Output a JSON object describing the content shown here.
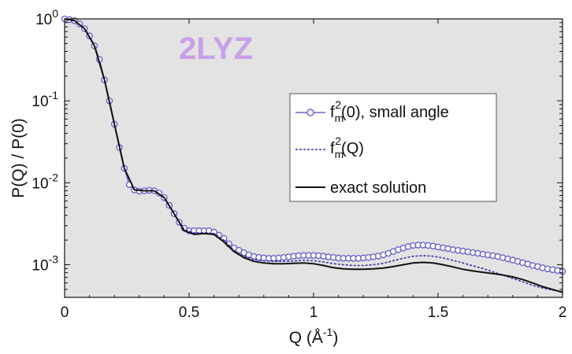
{
  "chart_data": {
    "type": "line",
    "annotation": "2LYZ",
    "xlabel_main": "Q (Å",
    "xlabel_sup": "-1",
    "xlabel_close": ")",
    "ylabel": "P(Q) / P(0)",
    "xlim": [
      0,
      2
    ],
    "ylim": [
      0.0004,
      1
    ],
    "yscale": "log",
    "grid": false,
    "legend_position": "right",
    "x_ticks": [
      "0",
      "0.5",
      "1",
      "1.5",
      "2"
    ],
    "y_ticks": [
      {
        "base": "10",
        "exp": "0"
      },
      {
        "base": "10",
        "exp": "-1"
      },
      {
        "base": "10",
        "exp": "-2"
      },
      {
        "base": "10",
        "exp": "-3"
      }
    ],
    "series": [
      {
        "name": "f_m^2(0), small angle",
        "legend_main": "f",
        "legend_sub": "m",
        "legend_sup": "2",
        "legend_rest": "(0), small angle",
        "color": "#6b63c8",
        "marker": "circle",
        "points": [
          [
            0.0,
            1.0
          ],
          [
            0.02,
            0.98
          ],
          [
            0.04,
            0.95
          ],
          [
            0.06,
            0.87
          ],
          [
            0.08,
            0.76
          ],
          [
            0.1,
            0.62
          ],
          [
            0.12,
            0.47
          ],
          [
            0.14,
            0.32
          ],
          [
            0.16,
            0.18
          ],
          [
            0.18,
            0.1
          ],
          [
            0.2,
            0.052
          ],
          [
            0.22,
            0.027
          ],
          [
            0.24,
            0.015
          ],
          [
            0.26,
            0.0095
          ],
          [
            0.28,
            0.0082
          ],
          [
            0.3,
            0.0079
          ],
          [
            0.32,
            0.008
          ],
          [
            0.34,
            0.0081
          ],
          [
            0.36,
            0.008
          ],
          [
            0.38,
            0.0075
          ],
          [
            0.4,
            0.0066
          ],
          [
            0.42,
            0.0053
          ],
          [
            0.44,
            0.0042
          ],
          [
            0.46,
            0.0033
          ],
          [
            0.48,
            0.0028
          ],
          [
            0.5,
            0.0026
          ],
          [
            0.52,
            0.0026
          ],
          [
            0.54,
            0.0026
          ],
          [
            0.56,
            0.0026
          ],
          [
            0.58,
            0.0026
          ],
          [
            0.6,
            0.0025
          ],
          [
            0.62,
            0.0023
          ],
          [
            0.64,
            0.0021
          ],
          [
            0.66,
            0.0018
          ],
          [
            0.68,
            0.0016
          ],
          [
            0.7,
            0.0015
          ],
          [
            0.72,
            0.0014
          ],
          [
            0.74,
            0.00132
          ],
          [
            0.76,
            0.00126
          ],
          [
            0.78,
            0.00123
          ],
          [
            0.8,
            0.00121
          ],
          [
            0.82,
            0.0012
          ],
          [
            0.84,
            0.0012
          ],
          [
            0.86,
            0.00121
          ],
          [
            0.88,
            0.00123
          ],
          [
            0.9,
            0.00125
          ],
          [
            0.92,
            0.00127
          ],
          [
            0.94,
            0.00129
          ],
          [
            0.96,
            0.0013
          ],
          [
            0.98,
            0.0013
          ],
          [
            1.0,
            0.0013
          ],
          [
            1.02,
            0.00129
          ],
          [
            1.04,
            0.00127
          ],
          [
            1.06,
            0.00125
          ],
          [
            1.08,
            0.00123
          ],
          [
            1.1,
            0.00121
          ],
          [
            1.12,
            0.0012
          ],
          [
            1.14,
            0.0012
          ],
          [
            1.16,
            0.0012
          ],
          [
            1.18,
            0.0012
          ],
          [
            1.2,
            0.00121
          ],
          [
            1.22,
            0.00123
          ],
          [
            1.24,
            0.00125
          ],
          [
            1.26,
            0.00128
          ],
          [
            1.28,
            0.00132
          ],
          [
            1.3,
            0.00138
          ],
          [
            1.32,
            0.00145
          ],
          [
            1.34,
            0.00153
          ],
          [
            1.36,
            0.0016
          ],
          [
            1.38,
            0.00167
          ],
          [
            1.4,
            0.00172
          ],
          [
            1.42,
            0.00174
          ],
          [
            1.44,
            0.00174
          ],
          [
            1.46,
            0.00172
          ],
          [
            1.48,
            0.00169
          ],
          [
            1.5,
            0.00165
          ],
          [
            1.52,
            0.00161
          ],
          [
            1.54,
            0.00157
          ],
          [
            1.56,
            0.00153
          ],
          [
            1.58,
            0.0015
          ],
          [
            1.6,
            0.00147
          ],
          [
            1.62,
            0.00144
          ],
          [
            1.64,
            0.00141
          ],
          [
            1.66,
            0.00138
          ],
          [
            1.68,
            0.00135
          ],
          [
            1.7,
            0.00132
          ],
          [
            1.72,
            0.00129
          ],
          [
            1.74,
            0.00126
          ],
          [
            1.76,
            0.00122
          ],
          [
            1.78,
            0.00118
          ],
          [
            1.8,
            0.00114
          ],
          [
            1.82,
            0.0011
          ],
          [
            1.84,
            0.00106
          ],
          [
            1.86,
            0.00102
          ],
          [
            1.88,
            0.00098
          ],
          [
            1.9,
            0.00095
          ],
          [
            1.92,
            0.00092
          ],
          [
            1.94,
            0.00089
          ],
          [
            1.96,
            0.00087
          ],
          [
            1.98,
            0.00085
          ],
          [
            2.0,
            0.00083
          ]
        ]
      },
      {
        "name": "f_m^2(Q)",
        "legend_main": "f",
        "legend_sub": "m",
        "legend_sup": "2",
        "legend_rest": "(Q)",
        "color": "#3a34b0",
        "dash": "3,2",
        "points": [
          [
            0.0,
            1.0
          ],
          [
            0.04,
            0.95
          ],
          [
            0.08,
            0.76
          ],
          [
            0.12,
            0.47
          ],
          [
            0.16,
            0.18
          ],
          [
            0.2,
            0.052
          ],
          [
            0.24,
            0.015
          ],
          [
            0.28,
            0.0082
          ],
          [
            0.32,
            0.008
          ],
          [
            0.36,
            0.008
          ],
          [
            0.4,
            0.0066
          ],
          [
            0.44,
            0.0042
          ],
          [
            0.48,
            0.0027
          ],
          [
            0.52,
            0.00245
          ],
          [
            0.56,
            0.00245
          ],
          [
            0.6,
            0.0024
          ],
          [
            0.64,
            0.002
          ],
          [
            0.68,
            0.0015
          ],
          [
            0.72,
            0.00128
          ],
          [
            0.76,
            0.00116
          ],
          [
            0.8,
            0.00112
          ],
          [
            0.84,
            0.0011
          ],
          [
            0.88,
            0.0011
          ],
          [
            0.92,
            0.00111
          ],
          [
            0.96,
            0.00113
          ],
          [
            1.0,
            0.00112
          ],
          [
            1.04,
            0.00108
          ],
          [
            1.08,
            0.00103
          ],
          [
            1.12,
            0.001
          ],
          [
            1.16,
            0.00098
          ],
          [
            1.2,
            0.00098
          ],
          [
            1.24,
            0.001
          ],
          [
            1.28,
            0.00104
          ],
          [
            1.32,
            0.00112
          ],
          [
            1.36,
            0.0012
          ],
          [
            1.4,
            0.00127
          ],
          [
            1.44,
            0.00129
          ],
          [
            1.48,
            0.00127
          ],
          [
            1.52,
            0.00121
          ],
          [
            1.56,
            0.00113
          ],
          [
            1.6,
            0.00105
          ],
          [
            1.64,
            0.00097
          ],
          [
            1.68,
            0.0009
          ],
          [
            1.72,
            0.00082
          ],
          [
            1.76,
            0.00075
          ],
          [
            1.8,
            0.00068
          ],
          [
            1.84,
            0.00062
          ],
          [
            1.88,
            0.00056
          ],
          [
            1.92,
            0.00052
          ],
          [
            1.96,
            0.00049
          ],
          [
            2.0,
            0.00047
          ]
        ]
      },
      {
        "name": "exact solution",
        "legend_main": "exact solution",
        "legend_sub": "",
        "legend_sup": "",
        "legend_rest": "",
        "color": "#111111",
        "points": [
          [
            0.0,
            1.0
          ],
          [
            0.04,
            0.95
          ],
          [
            0.08,
            0.76
          ],
          [
            0.12,
            0.47
          ],
          [
            0.16,
            0.18
          ],
          [
            0.2,
            0.052
          ],
          [
            0.24,
            0.015
          ],
          [
            0.28,
            0.0082
          ],
          [
            0.32,
            0.008
          ],
          [
            0.36,
            0.008
          ],
          [
            0.4,
            0.0066
          ],
          [
            0.44,
            0.0042
          ],
          [
            0.48,
            0.0026
          ],
          [
            0.52,
            0.00235
          ],
          [
            0.56,
            0.0024
          ],
          [
            0.6,
            0.00235
          ],
          [
            0.64,
            0.0019
          ],
          [
            0.68,
            0.00145
          ],
          [
            0.72,
            0.00122
          ],
          [
            0.76,
            0.0011
          ],
          [
            0.8,
            0.00105
          ],
          [
            0.84,
            0.00103
          ],
          [
            0.88,
            0.00103
          ],
          [
            0.92,
            0.00104
          ],
          [
            0.96,
            0.00105
          ],
          [
            1.0,
            0.00103
          ],
          [
            1.04,
            0.00098
          ],
          [
            1.08,
            0.00092
          ],
          [
            1.12,
            0.00089
          ],
          [
            1.16,
            0.00088
          ],
          [
            1.2,
            0.00088
          ],
          [
            1.24,
            0.00089
          ],
          [
            1.28,
            0.00091
          ],
          [
            1.32,
            0.00095
          ],
          [
            1.36,
            0.001
          ],
          [
            1.4,
            0.00105
          ],
          [
            1.44,
            0.00107
          ],
          [
            1.48,
            0.00105
          ],
          [
            1.52,
            0.001
          ],
          [
            1.56,
            0.00094
          ],
          [
            1.6,
            0.00088
          ],
          [
            1.64,
            0.00084
          ],
          [
            1.68,
            0.00081
          ],
          [
            1.72,
            0.00078
          ],
          [
            1.76,
            0.00075
          ],
          [
            1.8,
            0.00071
          ],
          [
            1.84,
            0.00066
          ],
          [
            1.88,
            0.0006
          ],
          [
            1.92,
            0.00054
          ],
          [
            1.96,
            0.0005
          ],
          [
            2.0,
            0.00046
          ]
        ]
      }
    ]
  }
}
